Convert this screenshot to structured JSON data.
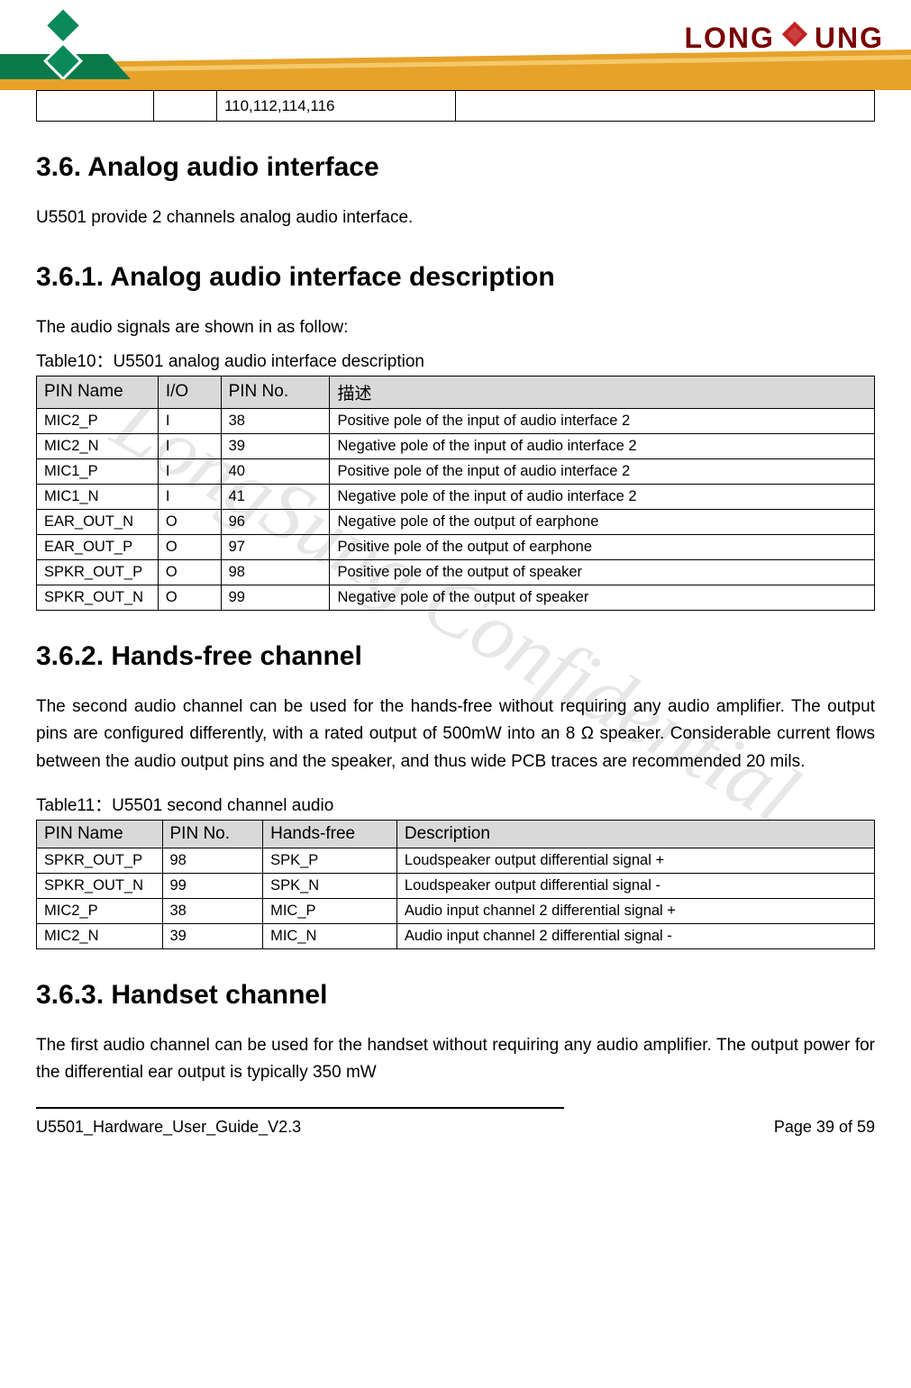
{
  "header": {
    "brand_left_text": "LONG",
    "brand_right_text": "UNG",
    "logo_colors": {
      "tile1": "#0a8a5a",
      "tile2": "#e0a030",
      "stroke": "#ffffff"
    },
    "brand_text_color": "#7a0000",
    "diamond_color": "#c22020",
    "banner_colors": {
      "top": "#ffffff",
      "bottom": "#e6a22b",
      "accent": "#0a7a4a"
    }
  },
  "top_table": {
    "cell_text": "110,112,114,116",
    "col_widths": [
      "14%",
      "7.5%",
      "28.5%",
      "50%"
    ]
  },
  "section_3_6": {
    "heading": "3.6. Analog audio interface",
    "intro": "U5501 provide 2 channels analog audio interface."
  },
  "section_3_6_1": {
    "heading": "3.6.1. Analog audio interface description",
    "lead": "The audio signals are shown in as follow:",
    "table_caption": "Table10：U5501 analog audio interface description",
    "columns": [
      "PIN Name",
      "I/O",
      "PIN No.",
      "描述"
    ],
    "col_widths": [
      "14.5%",
      "7.5%",
      "13%",
      "65%"
    ],
    "rows": [
      [
        "MIC2_P",
        "I",
        "38",
        "Positive pole of the input of audio interface 2"
      ],
      [
        "MIC2_N",
        "I",
        "39",
        "Negative pole of the input of audio interface 2"
      ],
      [
        "MIC1_P",
        "I",
        "40",
        "Positive pole of the input of audio interface 2"
      ],
      [
        "MIC1_N",
        "I",
        "41",
        "Negative pole of the input of audio interface 2"
      ],
      [
        "EAR_OUT_N",
        "O",
        "96",
        "Negative pole of the output of earphone"
      ],
      [
        "EAR_OUT_P",
        "O",
        "97",
        "Positive pole of the output of earphone"
      ],
      [
        "SPKR_OUT_P",
        "O",
        "98",
        "Positive pole of the output of speaker"
      ],
      [
        "SPKR_OUT_N",
        "O",
        "99",
        "Negative pole of the output of speaker"
      ]
    ]
  },
  "section_3_6_2": {
    "heading": "3.6.2. Hands-free channel",
    "body": "The second audio channel can be used for the hands-free without requiring any audio amplifier. The output pins are configured differently, with a rated output of 500mW into an 8 Ω speaker. Considerable current flows between the audio output pins and the speaker, and thus wide PCB traces are recommended 20 mils.",
    "table_caption": "Table11：U5501 second channel audio",
    "columns": [
      "PIN Name",
      "PIN No.",
      "Hands-free",
      "Description"
    ],
    "col_widths": [
      "15%",
      "12%",
      "16%",
      "57%"
    ],
    "rows": [
      [
        "SPKR_OUT_P",
        "98",
        "SPK_P",
        "Loudspeaker output differential signal +"
      ],
      [
        "SPKR_OUT_N",
        "99",
        "SPK_N",
        "Loudspeaker output differential signal -"
      ],
      [
        "MIC2_P",
        "38",
        "MIC_P",
        "Audio input channel 2 differential signal +"
      ],
      [
        "MIC2_N",
        "39",
        "MIC_N",
        "Audio input channel 2 differential signal -"
      ]
    ]
  },
  "section_3_6_3": {
    "heading": "3.6.3. Handset channel",
    "body": "The first audio channel can be used for the handset without requiring any audio amplifier. The output power for the differential ear output is typically 350 mW"
  },
  "footer": {
    "doc_id": "U5501_Hardware_User_Guide_V2.3",
    "page_label": "Page 39 of 59"
  },
  "watermark": "LongSung Confidential",
  "style": {
    "heading_color": "#000000",
    "table_header_bg": "#d9d9d9",
    "table_border": "#000000",
    "body_font_size": 19,
    "table_cell_font_size": 16.5
  }
}
